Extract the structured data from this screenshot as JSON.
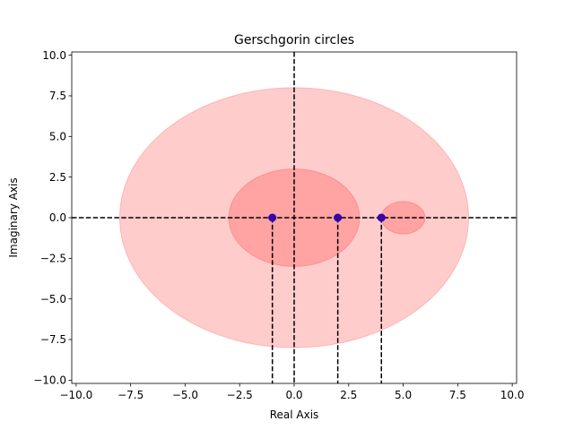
{
  "chart_data": {
    "type": "scatter",
    "title": "Gerschgorin circles",
    "xlabel": "Real Axis",
    "ylabel": "Imaginary Axis",
    "xlim": [
      -10.2,
      10.2
    ],
    "ylim": [
      -10.2,
      10.2
    ],
    "xticks": [
      -10.0,
      -7.5,
      -5.0,
      -2.5,
      0.0,
      2.5,
      5.0,
      7.5,
      10.0
    ],
    "yticks": [
      -10.0,
      -7.5,
      -5.0,
      -2.5,
      0.0,
      2.5,
      5.0,
      7.5,
      10.0
    ],
    "xtick_labels": [
      "−10.0",
      "−7.5",
      "−5.0",
      "−2.5",
      "0.0",
      "2.5",
      "5.0",
      "7.5",
      "10.0"
    ],
    "ytick_labels": [
      "−10.0",
      "−7.5",
      "−5.0",
      "−2.5",
      "0.0",
      "2.5",
      "5.0",
      "7.5",
      "10.0"
    ],
    "grid": false,
    "circles": [
      {
        "center": [
          0,
          0
        ],
        "radius": 8
      },
      {
        "center": [
          0,
          0
        ],
        "radius": 3
      },
      {
        "center": [
          5,
          0
        ],
        "radius": 1
      }
    ],
    "eigenvalues": [
      {
        "x": -1,
        "y": 0
      },
      {
        "x": 2,
        "y": 0
      },
      {
        "x": 4,
        "y": 0
      }
    ],
    "reference_lines": {
      "horizontal_y": 0,
      "vertical_x": 0
    },
    "eigenvalue_drop_lines": [
      -1,
      2,
      4
    ],
    "colors": {
      "circle_fill": "#ff0000",
      "point_fill": "#4b0082",
      "point_edge": "#0000ff",
      "dashed_line": "#000000"
    }
  }
}
